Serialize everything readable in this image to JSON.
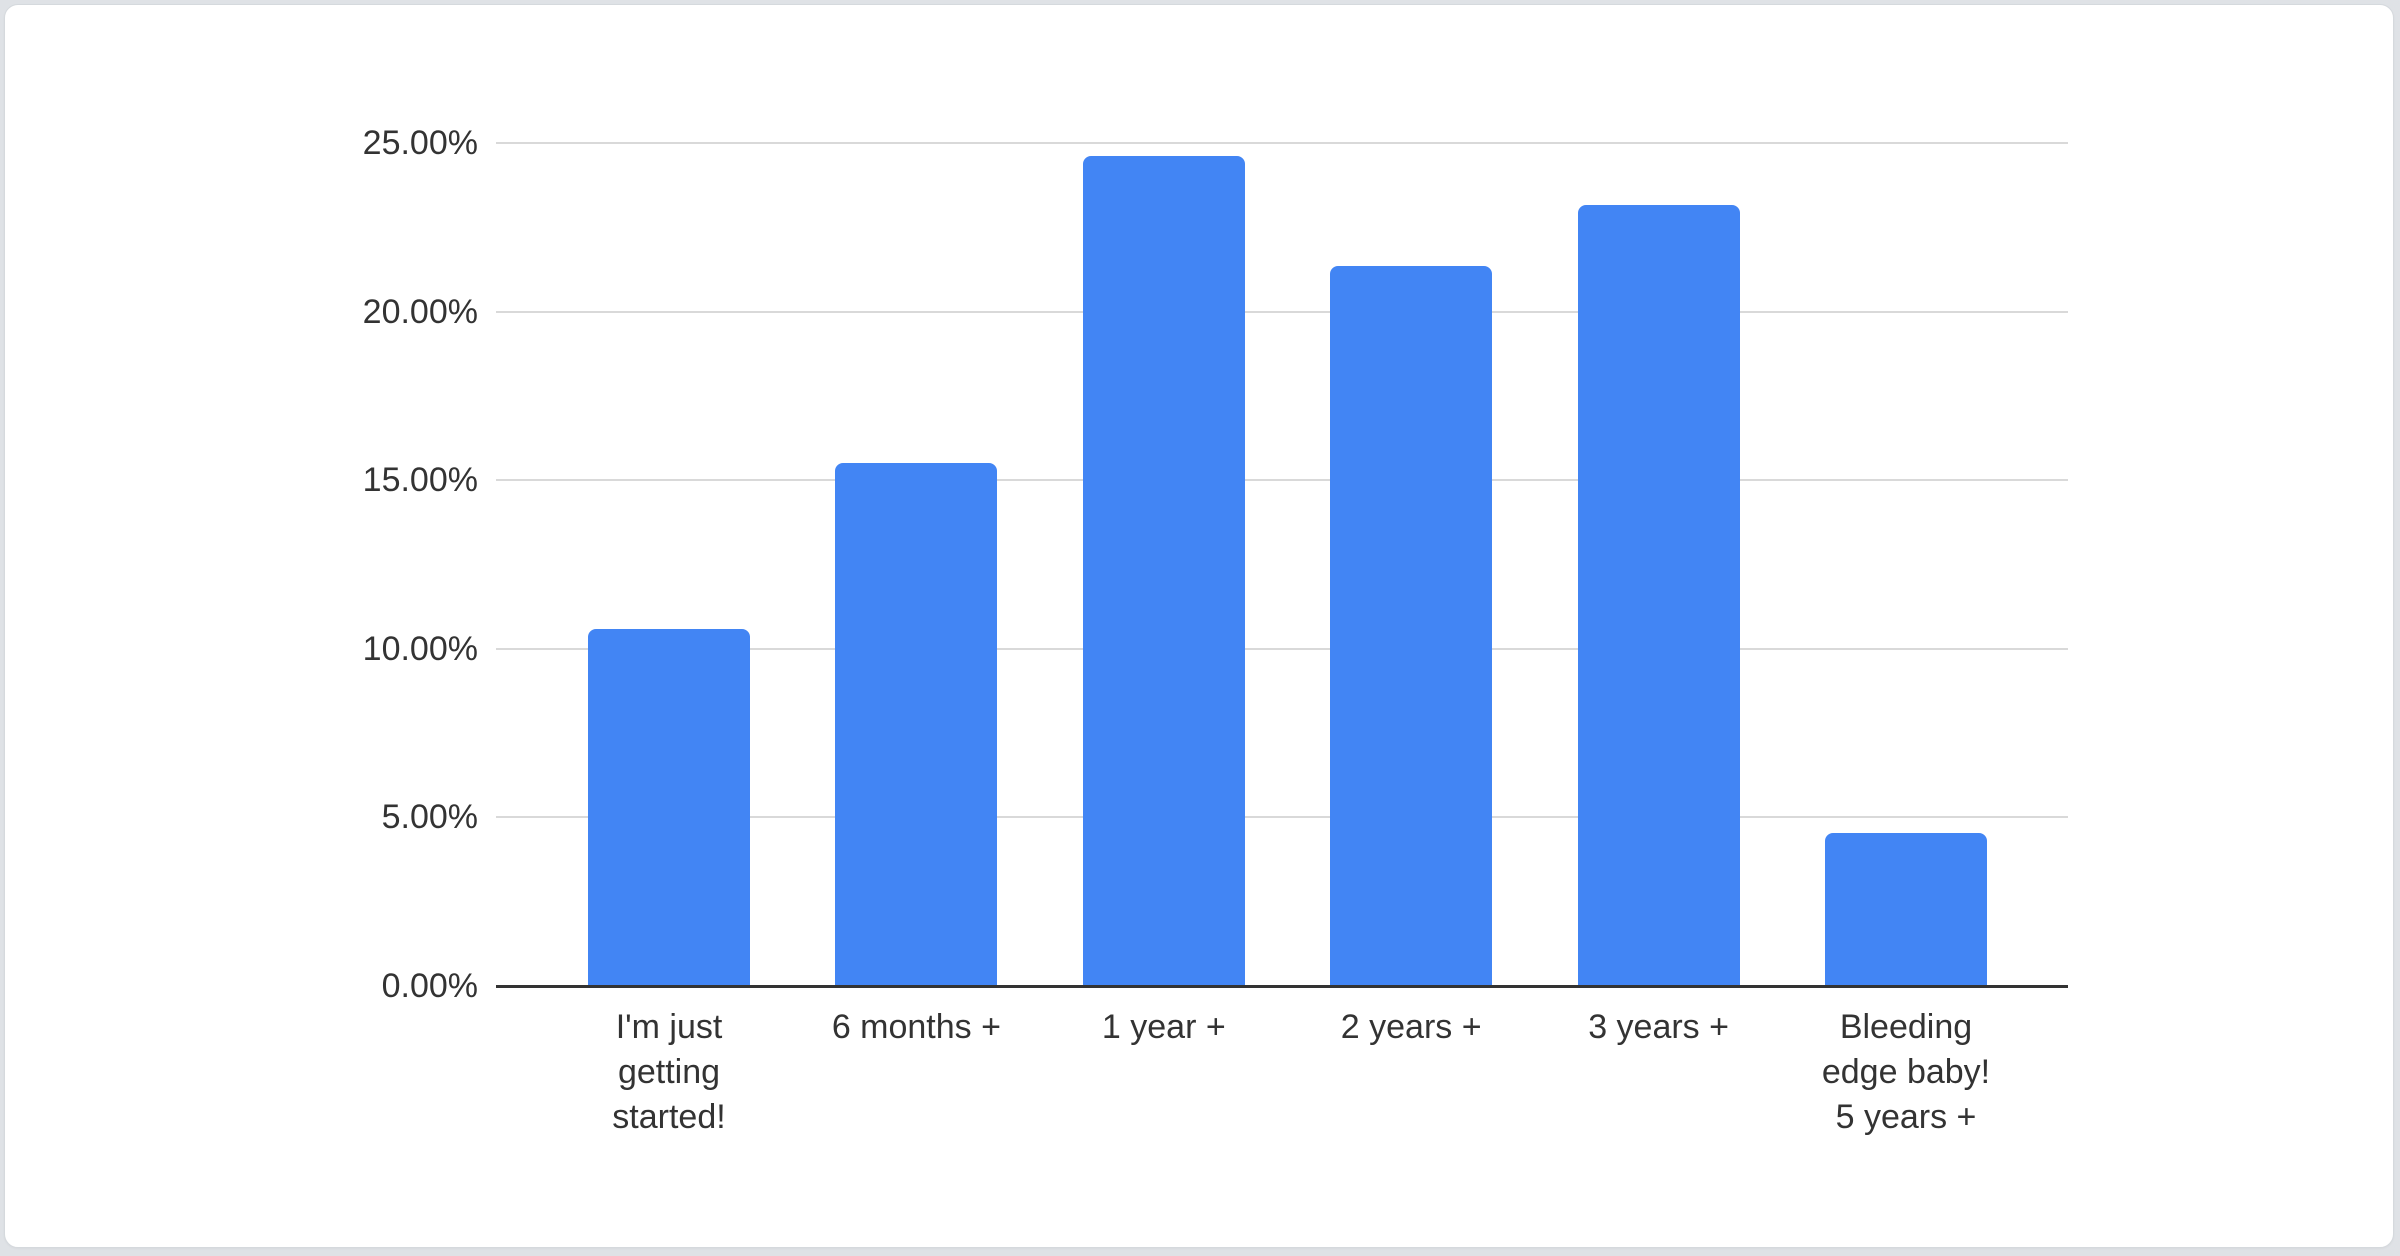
{
  "chart_data": {
    "type": "bar",
    "title": "",
    "xlabel": "",
    "ylabel": "",
    "categories": [
      "I'm just getting started!",
      "6 months +",
      "1 year +",
      "2 years +",
      "3 years +",
      "Bleeding edge baby! 5 years +"
    ],
    "category_lines": [
      [
        "I'm just",
        "getting",
        "started!"
      ],
      [
        "6 months +"
      ],
      [
        "1 year +"
      ],
      [
        "2 years +"
      ],
      [
        "3 years +"
      ],
      [
        "Bleeding",
        "edge baby!",
        "5 years +"
      ]
    ],
    "values": [
      10.6,
      15.5,
      24.6,
      21.35,
      23.15,
      4.55
    ],
    "unit": "%",
    "ylim": [
      0,
      25
    ],
    "yticks": [
      {
        "value": 0,
        "label": "0.00%"
      },
      {
        "value": 5,
        "label": "5.00%"
      },
      {
        "value": 10,
        "label": "10.00%"
      },
      {
        "value": 15,
        "label": "15.00%"
      },
      {
        "value": 20,
        "label": "20.00%"
      },
      {
        "value": 25,
        "label": "25.00%"
      }
    ],
    "grid": true,
    "legend": "none",
    "colors": {
      "bar": "#4285f4",
      "gridline": "#d9d9d9",
      "axis_line": "#333333",
      "text": "#333333",
      "card_background": "#ffffff",
      "page_background": "#dfe2e6"
    }
  }
}
